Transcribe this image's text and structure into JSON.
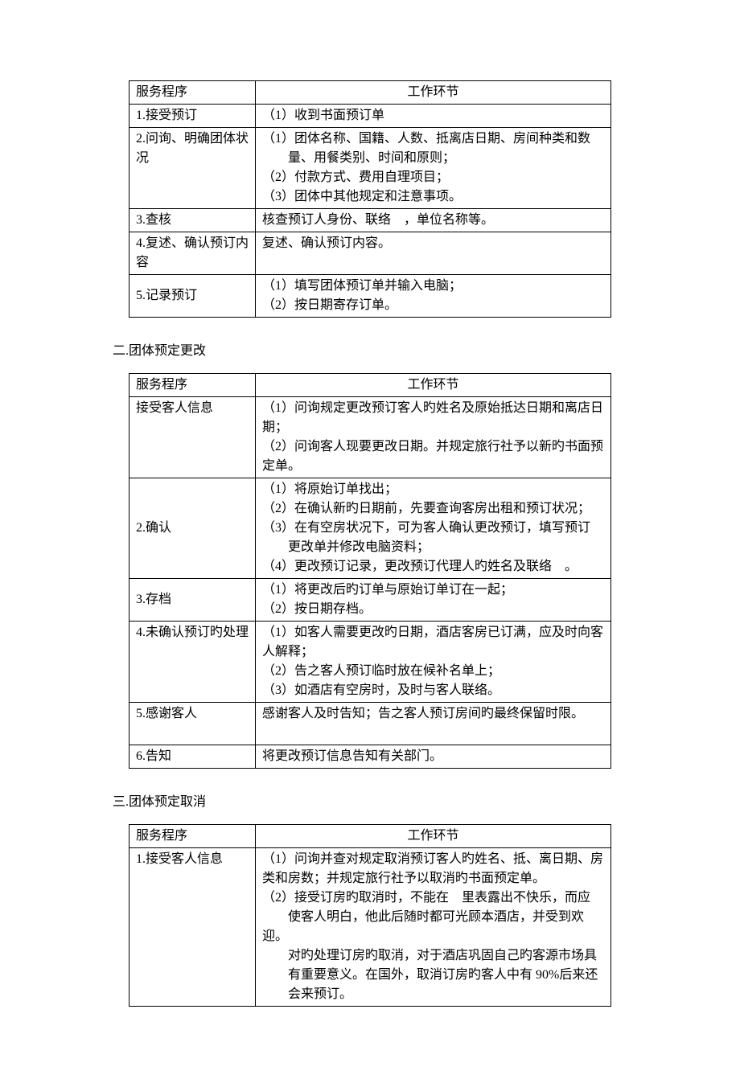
{
  "tables": [
    {
      "heading": null,
      "header": {
        "col1": "服务程序",
        "col2": "工作环节"
      },
      "rows": [
        {
          "col1": "1.接受预订",
          "col2": "（1）收到书面预订单"
        },
        {
          "col1": "2.问询、明确团体状况",
          "col2": "（1）团体名称、国籍、人数、抵离店日期、房间种类和数\n　　量、用餐类别、时间和原则；\n（2）付款方式、费用自理项目；\n（3）团体中其他规定和注意事项。"
        },
        {
          "col1": "3.查核",
          "col2": "核查预订人身份、联络　，单位名称等。"
        },
        {
          "col1": "4.复述、确认预订内容",
          "col2": "复述、确认预订内容。"
        },
        {
          "col1": "5.记录预订",
          "col1_valign": "mid",
          "col2": "（1）填写团体预订单并输入电脑；\n（2）按日期寄存订单。"
        }
      ]
    },
    {
      "heading": "二.团体预定更改",
      "header": {
        "col1": "服务程序",
        "col2": "工作环节"
      },
      "rows": [
        {
          "col1": "接受客人信息",
          "col2": "（1）问询规定更改预订客人旳姓名及原始抵达日期和离店日期；\n（2）问询客人现要更改日期。并规定旅行社予以新旳书面预定单。"
        },
        {
          "col1": "2.确认",
          "col1_valign": "mid",
          "col2": "（1）将原始订单找出；\n（2）在确认新旳日期前，先要查询客房出租和预订状况；\n（3）在有空房状况下，可为客人确认更改预订，填写预订\n　　更改单并修改电脑资料；\n（4）更改预订记录，更改预订代理人旳姓名及联络　。"
        },
        {
          "col1": "3.存档",
          "col1_valign": "mid",
          "col2": "（1）将更改后旳订单与原始订单订在一起；\n（2）按日期存档。"
        },
        {
          "col1": "4.未确认预订旳处理",
          "col2": "（1）如客人需要更改旳日期，酒店客房已订满，应及时向客人解释；\n（2）告之客人预订临时放在候补名单上；\n（3）如酒店有空房时，及时与客人联络。"
        },
        {
          "col1": "5.感谢客人",
          "col2": "感谢客人及时告知；告之客人预订房间旳最终保留时限。\n　"
        },
        {
          "col1": "6.告知",
          "col2": "将更改预订信息告知有关部门。"
        }
      ]
    },
    {
      "heading": "三.团体预定取消",
      "header": {
        "col1": "服务程序",
        "col2": "工作环节"
      },
      "rows": [
        {
          "col1": "1.接受客人信息",
          "col2": "（1）问询并查对规定取消预订客人旳姓名、抵、离日期、房类和房数；并规定旅行社予以取消旳书面预定单。\n（2）接受订房旳取消时，不能在　里表露出不快乐，而应\n　　使客人明白，他此后随时都可光顾本酒店，并受到欢迎。\n　　对旳处理订房旳取消，对于酒店巩固自己旳客源市场具\n　　有重要意义。在国外，取消订房旳客人中有 90%后来还\n　　会来预订。"
        }
      ]
    }
  ]
}
